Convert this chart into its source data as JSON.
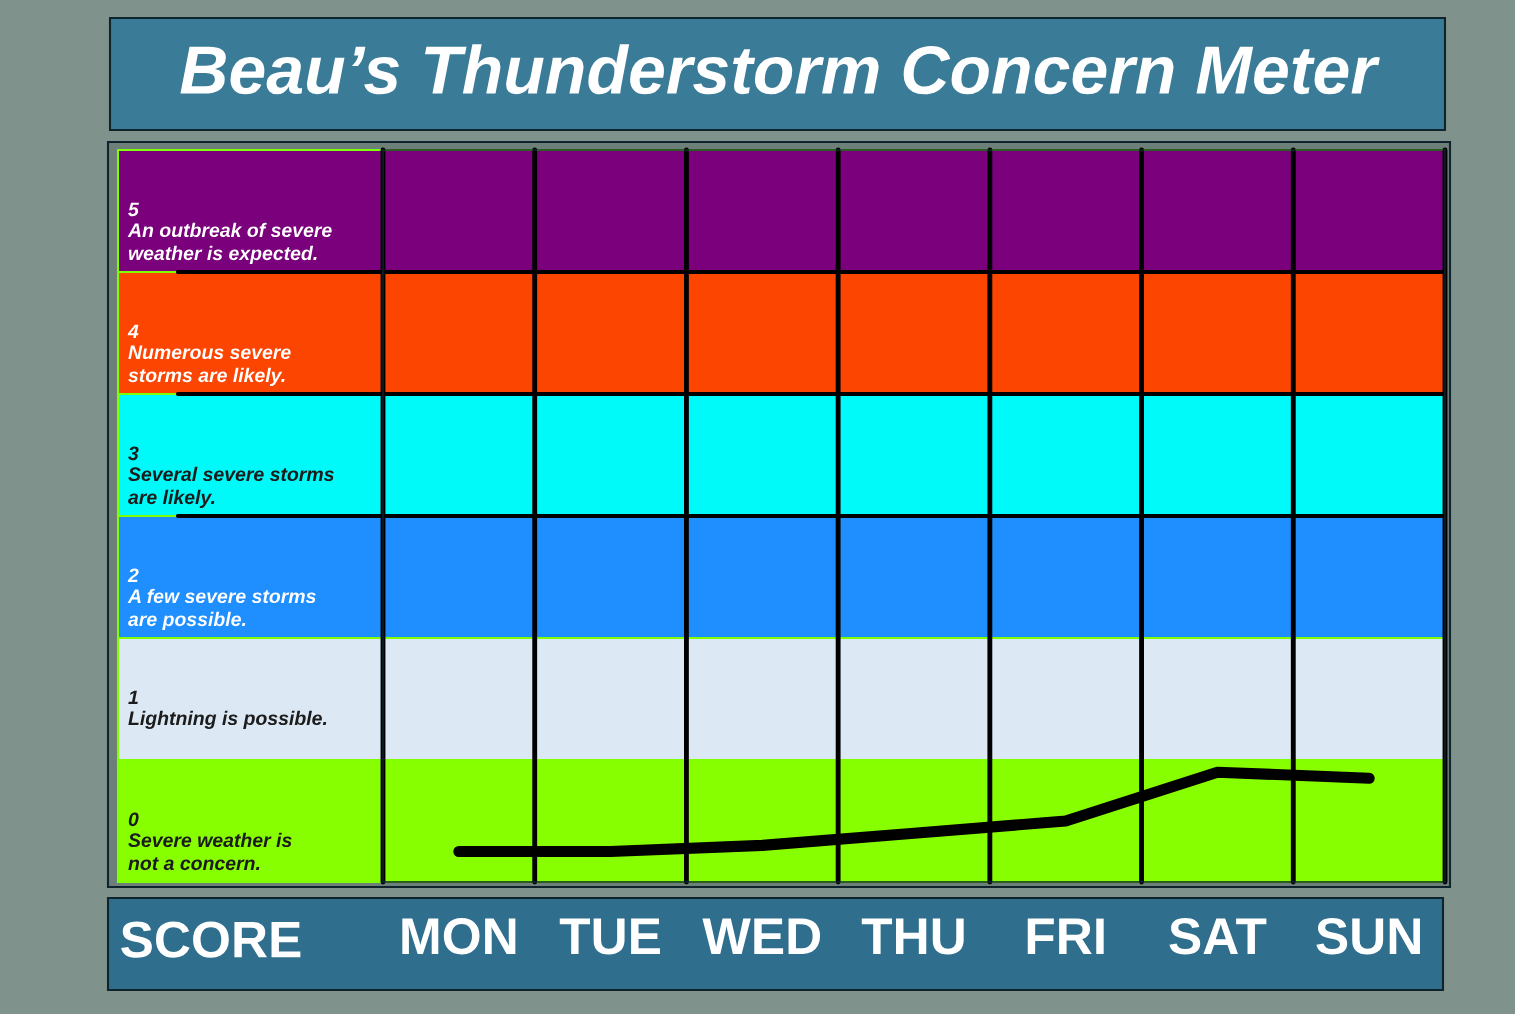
{
  "chart_data": {
    "type": "line",
    "title": "Beau’s Thunderstorm Concern Meter",
    "ylabel": "SCORE",
    "categories": [
      "MON",
      "TUE",
      "WED",
      "THU",
      "FRI",
      "SAT",
      "SUN"
    ],
    "ylim": [
      -0.5,
      5.5
    ],
    "yticks": [
      0,
      1,
      2,
      3,
      4,
      5
    ],
    "marker": "none",
    "line_style": "solid",
    "series": [
      {
        "color": "#000000",
        "values": [
          -0.25,
          -0.25,
          -0.2,
          -0.1,
          0,
          0.4,
          0.35
        ]
      }
    ],
    "bands": [
      {
        "axis": "y",
        "from": 4.5,
        "to": 5.5,
        "label": "An outbreak of severe\nweather is expected.",
        "color": "#7b007b"
      },
      {
        "axis": "y",
        "from": 3.5,
        "to": 4.5,
        "label": "Numerous severe\nstorms are likely.",
        "color": "#fc4500"
      },
      {
        "axis": "y",
        "from": 2.5,
        "to": 3.5,
        "label": "Several severe storms\nare likely.",
        "color": "#00fafa"
      },
      {
        "axis": "y",
        "from": 1.5,
        "to": 2.5,
        "label": "A few severe storms\nare possible.",
        "color": "#1f8fff"
      },
      {
        "axis": "y",
        "from": 0.5,
        "to": 1.5,
        "label": "Lightning is possible.",
        "color": "#dde8f5"
      },
      {
        "axis": "y",
        "from": -0.5,
        "to": 0.5,
        "label": "Severe weather is\nnot a concern.",
        "color": "#88ff00"
      }
    ],
    "ref_lines": [
      {
        "axis": "y",
        "value": 4.5,
        "color": "#000000"
      },
      {
        "axis": "y",
        "value": 3.5,
        "color": "#000000"
      },
      {
        "axis": "y",
        "value": 2.5,
        "color": "#000000"
      }
    ]
  }
}
